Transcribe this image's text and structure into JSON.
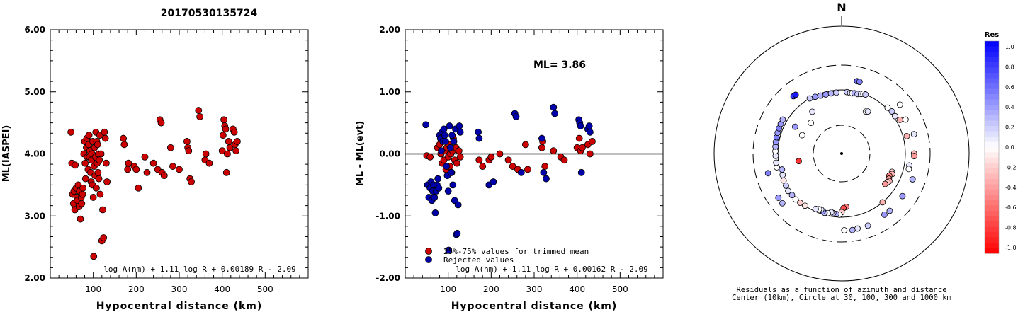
{
  "figure_title": "20170530135724",
  "chart_data": [
    {
      "type": "scatter",
      "xlabel": "Hypocentral distance (km)",
      "ylabel": "ML(IASPEI)",
      "xlim": [
        0,
        600
      ],
      "ylim": [
        2.0,
        6.0
      ],
      "xticks": [
        "100",
        "200",
        "300",
        "400",
        "500"
      ],
      "yticks": [
        "2.00",
        "3.00",
        "4.00",
        "5.00",
        "6.00"
      ],
      "formula": "log A(nm) + 1.11 log R + 0.00189 R - 2.09",
      "marker_color": "#cc0000",
      "points": [
        [
          48,
          4.35
        ],
        [
          50,
          3.85
        ],
        [
          52,
          3.35
        ],
        [
          54,
          3.2
        ],
        [
          55,
          3.4
        ],
        [
          57,
          3.1
        ],
        [
          58,
          3.82
        ],
        [
          60,
          3.45
        ],
        [
          62,
          3.3
        ],
        [
          63,
          3.25
        ],
        [
          65,
          3.5
        ],
        [
          67,
          3.15
        ],
        [
          68,
          3.4
        ],
        [
          70,
          2.95
        ],
        [
          72,
          3.3
        ],
        [
          73,
          3.2
        ],
        [
          75,
          3.35
        ],
        [
          76,
          3.45
        ],
        [
          78,
          4.0
        ],
        [
          80,
          4.2
        ],
        [
          81,
          3.85
        ],
        [
          82,
          3.6
        ],
        [
          84,
          4.1
        ],
        [
          85,
          4.25
        ],
        [
          86,
          3.95
        ],
        [
          88,
          3.75
        ],
        [
          89,
          4.15
        ],
        [
          90,
          4.3
        ],
        [
          91,
          3.95
        ],
        [
          92,
          4.05
        ],
        [
          94,
          3.7
        ],
        [
          95,
          3.55
        ],
        [
          96,
          3.9
        ],
        [
          97,
          4.0
        ],
        [
          98,
          3.5
        ],
        [
          99,
          4.2
        ],
        [
          100,
          3.3
        ],
        [
          101,
          2.35
        ],
        [
          102,
          3.8
        ],
        [
          103,
          4.1
        ],
        [
          104,
          3.65
        ],
        [
          105,
          3.95
        ],
        [
          106,
          4.35
        ],
        [
          107,
          3.45
        ],
        [
          108,
          4.2
        ],
        [
          109,
          3.85
        ],
        [
          110,
          4.15
        ],
        [
          111,
          3.7
        ],
        [
          112,
          4.0
        ],
        [
          113,
          3.6
        ],
        [
          114,
          3.9
        ],
        [
          115,
          4.3
        ],
        [
          116,
          3.35
        ],
        [
          118,
          4.0
        ],
        [
          120,
          2.6
        ],
        [
          122,
          3.1
        ],
        [
          124,
          2.65
        ],
        [
          126,
          4.35
        ],
        [
          128,
          4.25
        ],
        [
          130,
          3.85
        ],
        [
          132,
          3.55
        ],
        [
          170,
          4.25
        ],
        [
          172,
          4.15
        ],
        [
          180,
          3.75
        ],
        [
          182,
          3.85
        ],
        [
          195,
          3.8
        ],
        [
          200,
          3.75
        ],
        [
          205,
          3.45
        ],
        [
          220,
          3.95
        ],
        [
          225,
          3.7
        ],
        [
          240,
          3.85
        ],
        [
          250,
          3.75
        ],
        [
          255,
          4.55
        ],
        [
          258,
          4.5
        ],
        [
          260,
          3.7
        ],
        [
          265,
          3.65
        ],
        [
          280,
          4.1
        ],
        [
          285,
          3.8
        ],
        [
          300,
          3.75
        ],
        [
          318,
          4.2
        ],
        [
          320,
          4.1
        ],
        [
          322,
          4.05
        ],
        [
          325,
          3.6
        ],
        [
          328,
          3.55
        ],
        [
          345,
          4.7
        ],
        [
          348,
          4.6
        ],
        [
          360,
          3.9
        ],
        [
          362,
          4.0
        ],
        [
          370,
          3.85
        ],
        [
          400,
          4.05
        ],
        [
          402,
          4.3
        ],
        [
          404,
          4.55
        ],
        [
          406,
          4.45
        ],
        [
          408,
          4.4
        ],
        [
          410,
          3.7
        ],
        [
          412,
          4.0
        ],
        [
          415,
          4.2
        ],
        [
          418,
          4.1
        ],
        [
          425,
          4.4
        ],
        [
          428,
          4.35
        ],
        [
          430,
          4.15
        ],
        [
          432,
          4.05
        ],
        [
          435,
          4.2
        ]
      ]
    },
    {
      "type": "scatter",
      "xlabel": "Hypocentral distance (km)",
      "ylabel": "ML - ML(evt)",
      "xlim": [
        0,
        600
      ],
      "ylim": [
        -2.0,
        2.0
      ],
      "xticks": [
        "100",
        "200",
        "300",
        "400",
        "500"
      ],
      "yticks": [
        "-2.00",
        "-1.00",
        "0.00",
        "1.00",
        "2.00"
      ],
      "annotation": "ML= 3.86",
      "formula": "log A(nm) + 1.11 log R + 0.00162 R - 2.09",
      "legend": [
        "25%-75% values for trimmed mean",
        "Rejected values"
      ],
      "legend_colors": [
        "#cc0000",
        "#0000aa"
      ],
      "series": [
        {
          "color": "#cc0000",
          "points": [
            [
              50,
              -0.03
            ],
            [
              58,
              -0.05
            ],
            [
              75,
              0.1
            ],
            [
              80,
              0.15
            ],
            [
              83,
              0.0
            ],
            [
              86,
              -0.15
            ],
            [
              88,
              0.2
            ],
            [
              90,
              -0.1
            ],
            [
              92,
              0.05
            ],
            [
              95,
              -0.25
            ],
            [
              97,
              0.1
            ],
            [
              100,
              -0.05
            ],
            [
              102,
              0.15
            ],
            [
              104,
              -0.2
            ],
            [
              106,
              0.0
            ],
            [
              108,
              -0.3
            ],
            [
              110,
              0.05
            ],
            [
              112,
              0.25
            ],
            [
              115,
              -0.1
            ],
            [
              118,
              0.1
            ],
            [
              120,
              -0.15
            ],
            [
              125,
              0.05
            ],
            [
              128,
              -0.05
            ],
            [
              172,
              -0.1
            ],
            [
              180,
              -0.2
            ],
            [
              195,
              -0.1
            ],
            [
              200,
              -0.05
            ],
            [
              220,
              0.0
            ],
            [
              240,
              -0.1
            ],
            [
              250,
              -0.2
            ],
            [
              262,
              -0.25
            ],
            [
              280,
              0.15
            ],
            [
              285,
              -0.25
            ],
            [
              318,
              0.1
            ],
            [
              320,
              0.2
            ],
            [
              325,
              -0.2
            ],
            [
              345,
              0.05
            ],
            [
              362,
              -0.05
            ],
            [
              370,
              -0.1
            ],
            [
              400,
              0.1
            ],
            [
              405,
              0.25
            ],
            [
              408,
              0.05
            ],
            [
              412,
              0.1
            ],
            [
              425,
              0.15
            ],
            [
              430,
              0.0
            ],
            [
              435,
              0.2
            ]
          ]
        },
        {
          "color": "#0000aa",
          "points": [
            [
              48,
              0.47
            ],
            [
              52,
              -0.5
            ],
            [
              55,
              -0.7
            ],
            [
              58,
              -0.55
            ],
            [
              60,
              -0.45
            ],
            [
              62,
              -0.75
            ],
            [
              64,
              -0.6
            ],
            [
              66,
              -0.5
            ],
            [
              68,
              -0.7
            ],
            [
              70,
              -0.95
            ],
            [
              72,
              -0.6
            ],
            [
              74,
              -0.5
            ],
            [
              76,
              -0.4
            ],
            [
              78,
              -0.55
            ],
            [
              80,
              0.3
            ],
            [
              82,
              0.25
            ],
            [
              84,
              0.05
            ],
            [
              86,
              0.35
            ],
            [
              88,
              0.2
            ],
            [
              90,
              0.4
            ],
            [
              92,
              0.3
            ],
            [
              94,
              0.2
            ],
            [
              96,
              -0.2
            ],
            [
              98,
              -0.35
            ],
            [
              100,
              -0.6
            ],
            [
              101,
              -1.55
            ],
            [
              103,
              0.45
            ],
            [
              105,
              0.1
            ],
            [
              107,
              -0.3
            ],
            [
              109,
              0.3
            ],
            [
              111,
              -0.5
            ],
            [
              113,
              0.2
            ],
            [
              115,
              -0.75
            ],
            [
              117,
              0.4
            ],
            [
              119,
              -1.3
            ],
            [
              121,
              -1.28
            ],
            [
              123,
              -0.82
            ],
            [
              126,
              0.45
            ],
            [
              128,
              0.35
            ],
            [
              170,
              0.35
            ],
            [
              172,
              0.25
            ],
            [
              195,
              -0.5
            ],
            [
              205,
              -0.45
            ],
            [
              255,
              0.65
            ],
            [
              258,
              0.6
            ],
            [
              270,
              -0.3
            ],
            [
              318,
              0.25
            ],
            [
              322,
              -0.3
            ],
            [
              328,
              -0.4
            ],
            [
              345,
              0.75
            ],
            [
              348,
              0.65
            ],
            [
              404,
              0.55
            ],
            [
              406,
              0.5
            ],
            [
              408,
              0.45
            ],
            [
              410,
              -0.3
            ],
            [
              425,
              0.4
            ],
            [
              428,
              0.45
            ],
            [
              430,
              0.35
            ]
          ]
        }
      ]
    },
    {
      "type": "polar",
      "north_label": "N",
      "colorbar_title": "Res",
      "colorbar_ticks": [
        "1.0",
        "0.8",
        "0.6",
        "0.4",
        "0.2",
        "0.0",
        "-0.2",
        "-0.4",
        "-0.6",
        "-0.8",
        "-1.0"
      ],
      "caption_line1": "Residuals as a function of azimuth and distance",
      "caption_line2": "Center (10km), Circle at 30, 100, 300 and 1000 km",
      "points": [
        [
          5,
          96,
          0.2
        ],
        [
          8,
          95,
          0.1
        ],
        [
          10,
          95,
          0.0
        ],
        [
          12,
          96,
          0.3
        ],
        [
          15,
          96,
          0.2
        ],
        [
          18,
          98,
          0.1
        ],
        [
          20,
          100,
          0.0
        ],
        [
          22,
          100,
          0.2
        ],
        [
          340,
          96,
          0.3
        ],
        [
          345,
          95,
          0.4
        ],
        [
          350,
          95,
          0.3
        ],
        [
          355,
          95,
          0.2
        ],
        [
          335,
          98,
          0.4
        ],
        [
          330,
          100,
          0.2
        ],
        [
          12,
          183,
          0.6
        ],
        [
          14,
          183,
          0.5
        ],
        [
          320,
          190,
          0.8
        ],
        [
          322,
          188,
          0.9
        ],
        [
          30,
          70,
          0.0
        ],
        [
          32,
          72,
          0.1
        ],
        [
          300,
          80,
          0.4
        ],
        [
          295,
          60,
          0.0
        ],
        [
          60,
          130,
          -0.3
        ],
        [
          62,
          170,
          0.0
        ],
        [
          50,
          200,
          0.0
        ],
        [
          75,
          130,
          -0.3
        ],
        [
          110,
          80,
          -0.2
        ],
        [
          112,
          82,
          -0.3
        ],
        [
          115,
          78,
          -0.5
        ],
        [
          118,
          80,
          -0.4
        ],
        [
          120,
          83,
          -0.3
        ],
        [
          122,
          81,
          -0.2
        ],
        [
          125,
          79,
          -0.4
        ],
        [
          100,
          140,
          0.1
        ],
        [
          103,
          142,
          0.0
        ],
        [
          140,
          100,
          -0.3
        ],
        [
          175,
          80,
          -0.5
        ],
        [
          178,
          82,
          -0.7
        ],
        [
          180,
          90,
          -0.2
        ],
        [
          182,
          95,
          0.0
        ],
        [
          185,
          94,
          0.3
        ],
        [
          188,
          93,
          0.2
        ],
        [
          190,
          92,
          0.1
        ],
        [
          193,
          95,
          0.0
        ],
        [
          196,
          96,
          0.2
        ],
        [
          198,
          94,
          0.4
        ],
        [
          200,
          92,
          0.1
        ],
        [
          202,
          93,
          0.0
        ],
        [
          205,
          95,
          0.1
        ],
        [
          215,
          100,
          -0.1
        ],
        [
          220,
          105,
          -0.2
        ],
        [
          225,
          110,
          0.0
        ],
        [
          230,
          108,
          0.3
        ],
        [
          235,
          112,
          0.1
        ],
        [
          240,
          104,
          0.2
        ],
        [
          245,
          102,
          -0.1
        ],
        [
          250,
          98,
          0.1
        ],
        [
          255,
          96,
          0.3
        ],
        [
          258,
          120,
          0.0
        ],
        [
          262,
          118,
          0.1
        ],
        [
          268,
          118,
          0.1
        ],
        [
          272,
          120,
          0.0
        ],
        [
          276,
          122,
          0.3
        ],
        [
          280,
          124,
          0.4
        ],
        [
          284,
          126,
          0.5
        ],
        [
          288,
          128,
          0.4
        ],
        [
          292,
          130,
          0.5
        ],
        [
          296,
          132,
          0.4
        ],
        [
          300,
          134,
          0.3
        ],
        [
          315,
          60,
          0.0
        ],
        [
          325,
          75,
          0.1
        ],
        [
          260,
          60,
          -0.8
        ],
        [
          255,
          200,
          0.5
        ],
        [
          140,
          190,
          0.3
        ],
        [
          145,
          188,
          0.4
        ],
        [
          160,
          205,
          0.2
        ],
        [
          168,
          205,
          0.1
        ],
        [
          172,
          210,
          0.3
        ],
        [
          178,
          206,
          0.0
        ],
        [
          230,
          210,
          0.3
        ],
        [
          235,
          208,
          0.4
        ],
        [
          110,
          195,
          0.3
        ],
        [
          125,
          185,
          0.4
        ],
        [
          45,
          110,
          0.0
        ],
        [
          50,
          115,
          0.2
        ],
        [
          55,
          112,
          0.1
        ],
        [
          75,
          190,
          0.1
        ],
        [
          90,
          170,
          -0.3
        ],
        [
          92,
          172,
          -0.4
        ]
      ]
    }
  ]
}
